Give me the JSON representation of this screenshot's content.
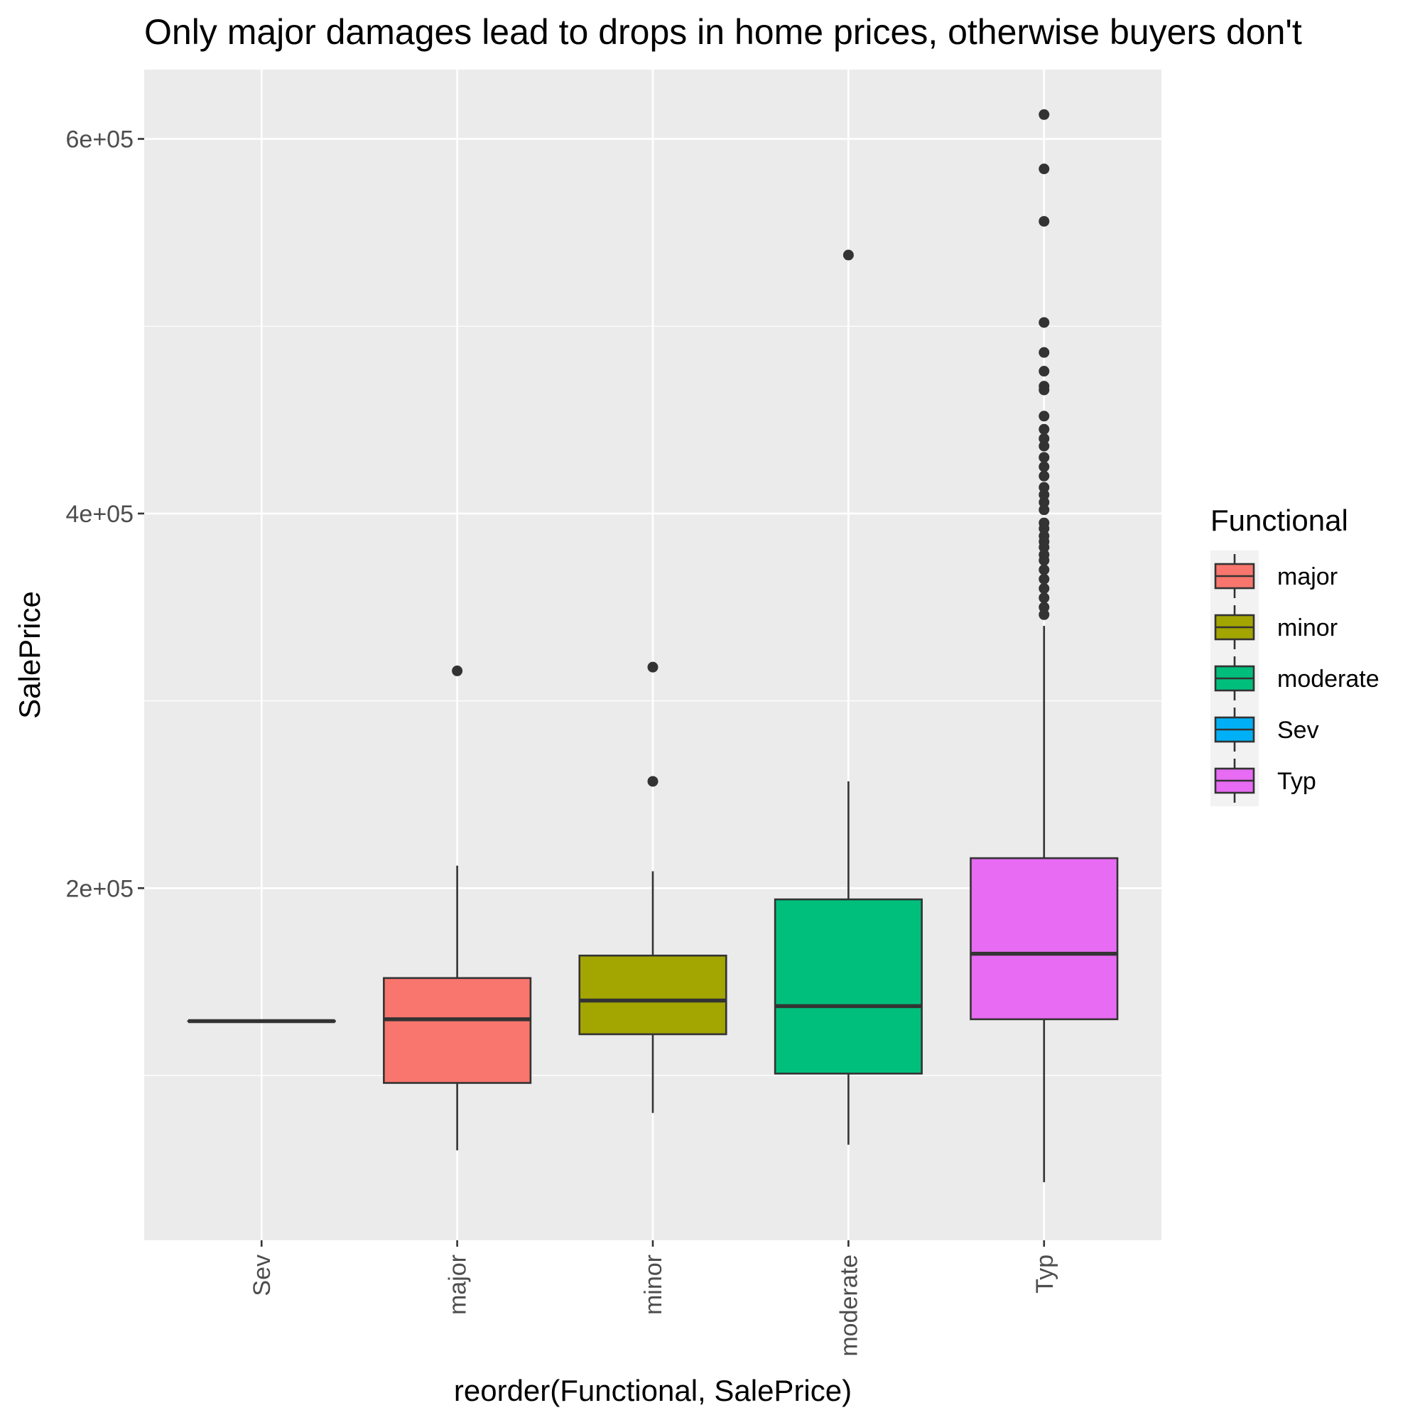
{
  "chart_data": {
    "type": "boxplot",
    "title": "Only major damages lead to drops in home prices, otherwise buyers don't",
    "xlabel": "reorder(Functional, SalePrice)",
    "ylabel": "SalePrice",
    "y_ticks": [
      {
        "value": 200000,
        "label": "2e+05"
      },
      {
        "value": 400000,
        "label": "4e+05"
      },
      {
        "value": 600000,
        "label": "6e+05"
      }
    ],
    "y_minor_ticks": [
      100000,
      300000,
      500000
    ],
    "ylim": [
      12000,
      637000
    ],
    "grid": true,
    "categories": [
      "Sev",
      "major",
      "minor",
      "moderate",
      "Typ"
    ],
    "boxes": [
      {
        "category": "Sev",
        "fill": "#00B0F6",
        "whisker_low": 129000,
        "q1": 129000,
        "median": 129000,
        "q3": 129000,
        "whisker_high": 129000,
        "outliers": []
      },
      {
        "category": "major",
        "fill": "#F8766D",
        "whisker_low": 60000,
        "q1": 96000,
        "median": 130000,
        "q3": 152000,
        "whisker_high": 212000,
        "outliers": [
          316000
        ]
      },
      {
        "category": "minor",
        "fill": "#A3A500",
        "whisker_low": 80000,
        "q1": 122000,
        "median": 140000,
        "q3": 164000,
        "whisker_high": 209000,
        "outliers": [
          257000,
          318000
        ]
      },
      {
        "category": "moderate",
        "fill": "#00BF7D",
        "whisker_low": 63000,
        "q1": 101000,
        "median": 137000,
        "q3": 194000,
        "whisker_high": 257000,
        "outliers": [
          538000
        ]
      },
      {
        "category": "Typ",
        "fill": "#E76BF3",
        "whisker_low": 43000,
        "q1": 130000,
        "median": 165000,
        "q3": 216000,
        "whisker_high": 340000,
        "outliers": [
          346000,
          350000,
          355000,
          360000,
          365000,
          370000,
          375000,
          378000,
          382000,
          385000,
          388000,
          392000,
          395000,
          402000,
          406000,
          410000,
          414000,
          420000,
          425000,
          430000,
          436000,
          440000,
          445000,
          452000,
          466000,
          468000,
          476000,
          486000,
          502000,
          556000,
          584000,
          613000
        ]
      }
    ],
    "legend": {
      "title": "Functional",
      "placement": "right",
      "items": [
        {
          "label": "major",
          "color": "#F8766D"
        },
        {
          "label": "minor",
          "color": "#A3A500"
        },
        {
          "label": "moderate",
          "color": "#00BF7D"
        },
        {
          "label": "Sev",
          "color": "#00B0F6"
        },
        {
          "label": "Typ",
          "color": "#E76BF3"
        }
      ]
    },
    "colors": {
      "panel_background": "#EBEBEB",
      "grid_line": "#FFFFFF",
      "box_outline": "#333333",
      "tick_text": "#4D4D4D"
    }
  }
}
